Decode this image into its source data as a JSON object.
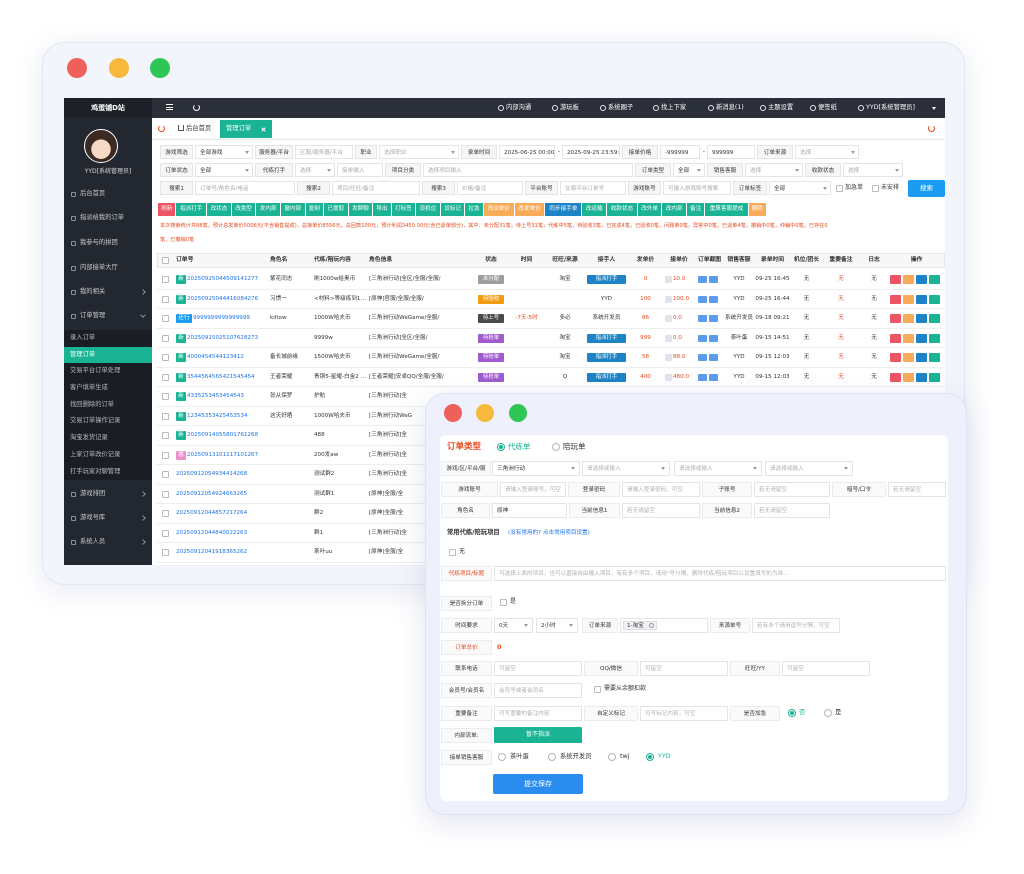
{
  "back": {
    "sidebar": {
      "brand": "鸡蛋铺D站",
      "user": "YYD[系统管理员]",
      "menu": [
        "后台首页",
        "指派给我的订单",
        "我参与的拼团",
        "内部接单大厅",
        "我的相关",
        "订单管理",
        "录入订单",
        "管理订单",
        "交易平台订单处理",
        "客户填单生成",
        "找回删除的订单",
        "交易订单操作记录",
        "淘宝发货记录",
        "上家订单改价记录",
        "打手玩家对聊管理",
        "游戏排团",
        "游戏号库",
        "系统人员"
      ]
    },
    "topnav": [
      "内部沟通",
      "游玩板",
      "系统圈子",
      "找上下家",
      "新消息(1)",
      "主题设置",
      "便签纸",
      "YYD[系统管理员]"
    ],
    "tabs": [
      "后台首页",
      "管理订单"
    ],
    "filters": {
      "labels": [
        "游戏筛选",
        "服务器/平台",
        "职业",
        "录单时间",
        "接单价格",
        "订单来源",
        "订单状态",
        "代练打手",
        "项目分类",
        "订单类型",
        "销售客服",
        "收款状态",
        "搜索1",
        "搜索2",
        "搜索3",
        "平台账号",
        "游戏账号",
        "订单标签"
      ],
      "inputs": [
        "全部游戏",
        "区服/服务器/平台",
        "选择职业",
        "2025-06-25 00:00:00",
        "2025-09-25 23:59:59",
        "-999999",
        "999999",
        "选择",
        "全部",
        "选择",
        "接单输入",
        "选择项目输入",
        "全部",
        "选择",
        "选择",
        "订单号/角色名/电话",
        "项目/旺旺/备注",
        "价格/备注",
        "交易平台订单号",
        "可输入游戏账号搜索",
        "全部"
      ],
      "sep": "-",
      "checks": [
        "加急单",
        "未安排"
      ],
      "search": "搜索"
    },
    "toolbar": [
      "刷新",
      "指派打手",
      "改状态",
      "改类型",
      "发内部",
      "撤内部",
      "复制",
      "已提取",
      "发群聊",
      "导出",
      "打标签",
      "设机位",
      "设标记",
      "拉急",
      "改派单价",
      "改发单价",
      "同步接手单",
      "改运输",
      "收款状态",
      "改外单",
      "改内部",
      "备注",
      "重算客服提成",
      "删除"
    ],
    "notice": [
      "本次搜索统计共88笔，预计总发单价5006元(不含销售提成)，总接单价8556元，总回款100元，预计利润3450.00元(含已退单部分)，其中：未分配31笔，待上号31笔，代练中5笔，待验收3笔，已完成4笔，已验收0笔，问题单0笔，异常中0笔，已退单4笔，撤销中0笔，仲裁中0笔，已存在0",
      "笔，已撤销0笔"
    ],
    "table": {
      "headers": [
        "订单号",
        "角色名",
        "代练/陪玩内容",
        "角色信息",
        "状态",
        "时间",
        "旺旺/来源",
        "接手人",
        "发单价",
        "接单价",
        "订单截图",
        "销售客服",
        "录单时间",
        "机位/团长",
        "重要备注",
        "日志",
        "操作"
      ],
      "rows": [
        [
          "新",
          "20250925044509141277",
          "紫花同志",
          "刷1000w给奥币",
          "[三角洲行动]全区/全服/全服/",
          "未分配",
          null,
          "淘宝",
          "指派打手",
          "0",
          "10.0",
          "YYD",
          "09-25 16:45",
          "无",
          "无",
          "无"
        ],
        [
          "新",
          "20250925044416084276",
          "习惯一",
          "<材料>等级练到110级",
          "[原神]官服/全服/全服/",
          "待验收",
          null,
          null,
          "YYD",
          "100",
          "100.0",
          "YYD",
          "09-25 16:44",
          "无",
          "无",
          "无"
        ],
        [
          "还行",
          "9999999999999999",
          "kiltow",
          "1000W哈夫币",
          "[三角洲行动WeGame/全服/",
          "待上号",
          "-7天-5时",
          "多必",
          "系统开发员",
          "86",
          "0.0",
          "系统开发员",
          "09-18 09:21",
          "无",
          "无",
          "无"
        ],
        [
          "新",
          "20250915025107628273",
          null,
          "9999w",
          "[三角洲行动]全区/全服/",
          "待抢单",
          null,
          "淘宝",
          "指派打手",
          "999",
          "0.0",
          "茶叶蛋",
          "09-15 14:51",
          "无",
          "无",
          "无"
        ],
        [
          "新",
          "4000454544123412",
          "备长城前缘",
          "1500W哈夫币",
          "[三角洲行动WeGame/全服/",
          "待抢单",
          null,
          "淘宝",
          "指派打手",
          "58",
          "88.0",
          "YYD",
          "09-15 12:03",
          "无",
          "无",
          "无"
        ],
        [
          "新",
          "3544564565421545454",
          "王者荣耀",
          "青铜5-星耀-白金2 5星 指定貂蝉",
          "[王者荣耀]安卓QQ/全服/全服/",
          "待抢单",
          null,
          "Q",
          "指派打手",
          "400",
          "480.0",
          "YYD",
          "09-15 12:03",
          "无",
          "无",
          "无"
        ],
        [
          "新",
          "4335253453454543",
          "张从保罗",
          "护航",
          "[三角洲行动]全"
        ],
        [
          "新",
          "12345353425453534",
          "这天好晒",
          "1000W哈夫币",
          "[三角洲行动WeG"
        ],
        [
          "新",
          "20250914055801761268",
          null,
          "488",
          "[三角洲行动]全"
        ],
        [
          "惠",
          "20250913101117101267",
          null,
          "200发aw",
          "[三角洲行动]全"
        ],
        [
          null,
          "20250912054934414268",
          null,
          "测试群2",
          "[三角洲行动]全"
        ],
        [
          null,
          "20250912054924663265",
          null,
          "测试群1",
          "[原神]全服/全"
        ],
        [
          null,
          "20250912044857217264",
          null,
          "群2",
          "[原神]全服/全"
        ],
        [
          null,
          "20250912044840022263",
          null,
          "群1",
          "[三角洲行动]全"
        ],
        [
          null,
          "20250912041918365262",
          null,
          "茶叶uu",
          "[原神]全服/全"
        ]
      ]
    }
  },
  "front": {
    "order_type_label": "订单类型",
    "order_types": [
      "代练单",
      "陪玩单"
    ],
    "labels": [
      "游戏/区/平台/服",
      "游戏账号",
      "登录密码",
      "子账号",
      "暗号/口令",
      "角色名",
      "当前信息1",
      "当前信息2",
      "代练项目/标题",
      "是否拆分订单",
      "时间要求",
      "订单来源",
      "来源单号",
      "订单总价",
      "联系电话",
      "QQ/微信",
      "旺旺/YY",
      "会员号/会员名",
      "重要备注",
      "自定义标记",
      "是否加急",
      "内部流单:",
      "接单销售客服"
    ],
    "inputs": [
      "三角洲行动",
      "请选择或输入",
      "请选择或输入",
      "请选择或输入",
      "请输入登录账号，可空",
      "请输入登录密码，可空",
      "若无请留空",
      "若无请留空",
      "原神",
      "若无请留空",
      "若无请留空",
      "可选择上面的项目，也可以直接自由输入项目，有有多个项目，请用\"号分隔，删除代练/陪玩项目以设置填写的为准...",
      "0天",
      "2小时",
      "1-淘宝",
      "若有多个请用逗号分隔，可空",
      "可留空",
      "可留空",
      "可留空",
      "会员号或者会员名",
      "可写重要的备注内容",
      "可写标记内容，可空"
    ],
    "common_title": "常用代练/陪玩项目",
    "common_link": "(没有常用的? 点击常用项目设置)",
    "none_option": "无",
    "split_option": "是",
    "order_total": "0",
    "deduct_option": "需要从余额扣款",
    "urgent_options": [
      "否",
      "是"
    ],
    "internal_button": "暂不指派",
    "staff_options": [
      "茶叶蛋",
      "系统开发员",
      "twj",
      "YYD"
    ],
    "submit": "提交保存"
  }
}
